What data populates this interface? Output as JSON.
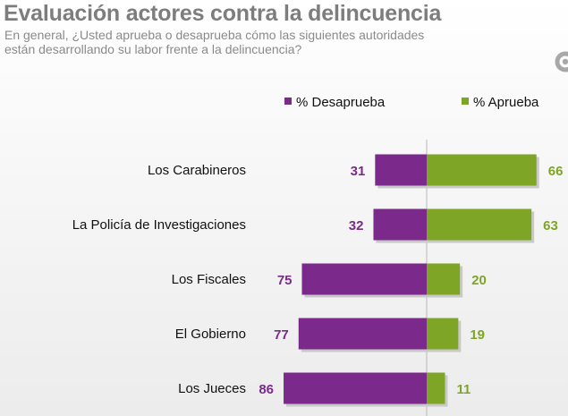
{
  "header": {
    "title": "Evaluación actores contra la delincuencia",
    "subtitle_line1": "En general, ¿Usted aprueba o desaprueba cómo las siguientes autoridades",
    "subtitle_line2": "están desarrollando su labor frente a  la delincuencia?"
  },
  "logo": {
    "icon": "ring-logo-icon",
    "color": "#a8a8a8"
  },
  "chart_data": {
    "type": "bar",
    "orientation": "horizontal-diverging",
    "title": "",
    "xlabel": "",
    "ylabel": "",
    "categories": [
      "Los Carabineros",
      "La Policía de Investigaciones",
      "Los Fiscales",
      "El Gobierno",
      "Los Jueces"
    ],
    "series": [
      {
        "name": "% Desaprueba",
        "values": [
          31,
          32,
          75,
          77,
          86
        ],
        "color": "#7b2a8c",
        "direction": "left"
      },
      {
        "name": "% Aprueba",
        "values": [
          66,
          63,
          20,
          19,
          11
        ],
        "color": "#7fa526",
        "direction": "right"
      }
    ],
    "legend_position": "top-right",
    "grid": false
  }
}
